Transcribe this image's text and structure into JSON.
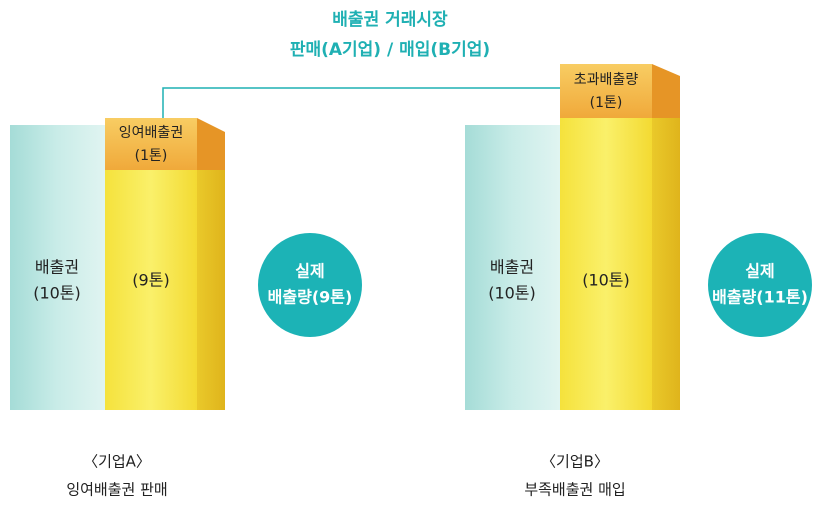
{
  "title": [
    "배출권 거래시장",
    "판매(A기업) / 매입(B기업)"
  ],
  "companies": [
    {
      "allowance": [
        "배출권",
        "(10톤)"
      ],
      "top": [
        "잉여배출권",
        "(1톤)"
      ],
      "actual": [
        "(9톤)"
      ],
      "circle": [
        "실제",
        "배출량(9톤)"
      ],
      "caption": [
        "〈기업A〉",
        "잉여배출권 판매"
      ]
    },
    {
      "allowance": [
        "배출권",
        "(10톤)"
      ],
      "top": [
        "초과배출량",
        "(1톤)"
      ],
      "actual": [
        "(10톤)"
      ],
      "circle": [
        "실제",
        "배출량(11톤)"
      ],
      "caption": [
        "〈기업B〉",
        "부족배출권 매입"
      ]
    }
  ]
}
